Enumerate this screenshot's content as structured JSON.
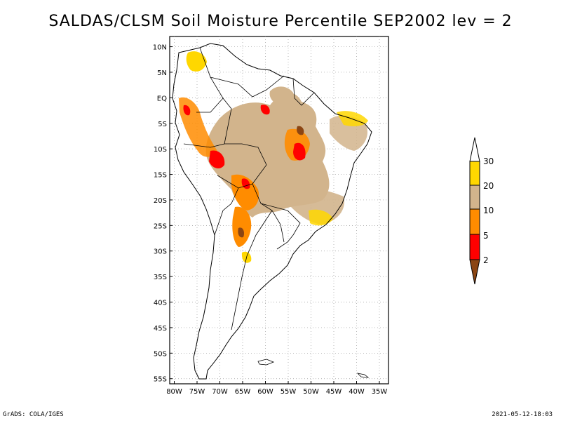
{
  "title": "SALDAS/CLSM Soil Moisture Percentile SEP2002 lev = 2",
  "footer": {
    "left": "GrADS: COLA/IGES",
    "right": "2021-05-12-18:03"
  },
  "map": {
    "lat_labels": [
      "10N",
      "5N",
      "EQ",
      "5S",
      "10S",
      "15S",
      "20S",
      "25S",
      "30S",
      "35S",
      "40S",
      "45S",
      "50S",
      "55S"
    ],
    "lat_values": [
      10,
      5,
      0,
      -5,
      -10,
      -15,
      -20,
      -25,
      -30,
      -35,
      -40,
      -45,
      -50,
      -55
    ],
    "lon_labels": [
      "80W",
      "75W",
      "70W",
      "65W",
      "60W",
      "55W",
      "50W",
      "45W",
      "40W",
      "35W"
    ],
    "lon_values": [
      -80,
      -75,
      -70,
      -65,
      -60,
      -55,
      -50,
      -45,
      -40,
      -35
    ],
    "lat_range": [
      -56,
      12
    ],
    "lon_range": [
      -81,
      -33
    ]
  },
  "legend": {
    "labels": [
      "2",
      "5",
      "10",
      "20",
      "30"
    ],
    "colors": {
      "below2": "#8b4513",
      "c2_5": "#ff0000",
      "c5_10": "#ff8c00",
      "c10_20": "#d2b48c",
      "c20_30": "#ffd700",
      "above30": "#ffffff"
    }
  }
}
